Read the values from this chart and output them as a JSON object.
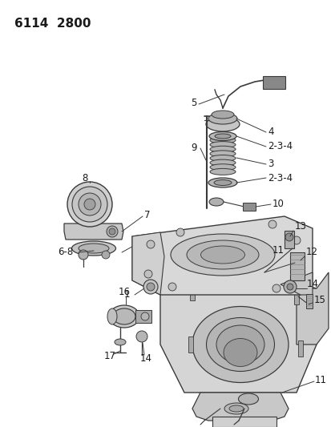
{
  "title": "6114  2800",
  "bg_color": "#ffffff",
  "line_color": "#3a3a3a",
  "text_color": "#1a1a1a",
  "gray_fill": "#c8c8c8",
  "gray_mid": "#b0b0b0",
  "gray_dark": "#888888",
  "gray_light": "#e0e0e0"
}
